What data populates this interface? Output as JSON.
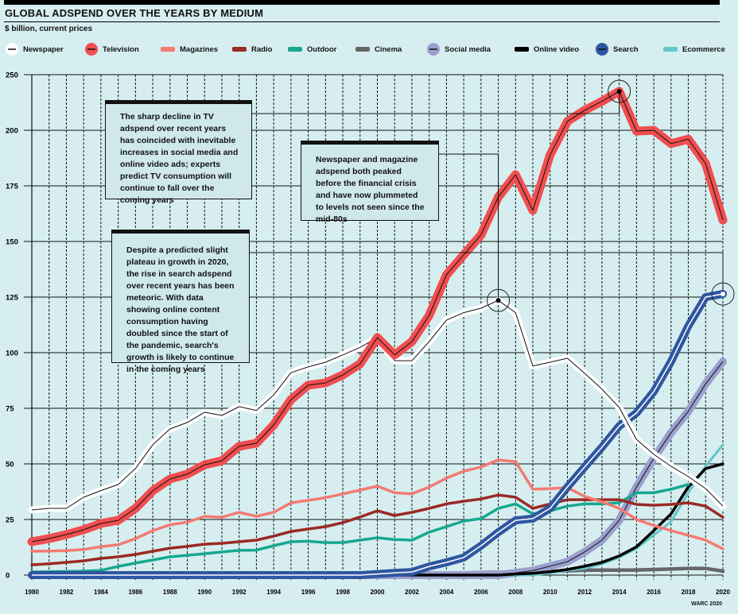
{
  "header": {
    "title": "GLOBAL ADSPEND OVER THE YEARS BY MEDIUM",
    "subtitle": "$ billion, current prices"
  },
  "annotations": [
    {
      "text": "The sharp decline in TV adspend over recent years has coincided with inevitable increases in social media and online video ads; experts predict TV consumption will continue to fall over the coming years",
      "series": "Television",
      "year": 2014
    },
    {
      "text": "Newspaper and magazine adspend both peaked before the financial crisis and have now plummeted to levels not seen since the mid-80s",
      "series": "Newspaper",
      "year": 2007
    },
    {
      "text": "Despite a predicted slight plateau in growth in 2020, the rise in search adspend over recent years has been meteoric. With data showing online content consumption having doubled since the start of the pandemic, search's growth is likely to continue in the coming years",
      "series": "Search",
      "year": 2020
    }
  ],
  "footer": {
    "source": "WARC 2020"
  },
  "chart_data": {
    "type": "line",
    "title": "GLOBAL ADSPEND OVER THE YEARS BY MEDIUM",
    "ylabel": "$ billion, current prices",
    "xlabel": "",
    "xlim": [
      1980,
      2020
    ],
    "ylim": [
      0,
      250
    ],
    "y_tick_labels": [
      "0",
      "25",
      "50",
      "75",
      "100",
      "125",
      "150",
      "175",
      "200",
      "250"
    ],
    "x_tick_labels": [
      "1980",
      "1982",
      "1984",
      "1986",
      "1988",
      "1990",
      "1992",
      "1994",
      "1996",
      "1998",
      "2000",
      "2002",
      "2004",
      "2006",
      "2008",
      "2010",
      "2012",
      "2014",
      "2016",
      "2018",
      "2020"
    ],
    "grid": true,
    "legend_placement": "top",
    "x": [
      1980,
      1981,
      1982,
      1983,
      1984,
      1985,
      1986,
      1987,
      1988,
      1989,
      1990,
      1991,
      1992,
      1993,
      1994,
      1995,
      1996,
      1997,
      1998,
      1999,
      2000,
      2001,
      2002,
      2003,
      2004,
      2005,
      2006,
      2007,
      2008,
      2009,
      2010,
      2011,
      2012,
      2013,
      2014,
      2015,
      2016,
      2017,
      2018,
      2019,
      2020
    ],
    "series": [
      {
        "name": "Newspaper",
        "color": "#ffffff",
        "values": [
          29.3,
          30,
          30,
          35,
          38,
          40.7,
          47.9,
          58.6,
          65.7,
          68.6,
          73.2,
          71.8,
          75.7,
          74,
          81,
          91,
          93.6,
          95.7,
          99,
          102.4,
          106.8,
          96.4,
          96.4,
          105,
          114.6,
          118,
          120,
          123.5,
          118,
          94,
          95.7,
          97.5,
          90.7,
          83.6,
          75.4,
          61,
          54.3,
          48.9,
          44.3,
          38.9,
          31
        ]
      },
      {
        "name": "Television",
        "color": "#f04e50",
        "values": [
          15,
          16.4,
          18.2,
          20.4,
          23.2,
          24.6,
          30,
          37.9,
          43.2,
          45.4,
          49.6,
          51.4,
          57.9,
          59.3,
          67.5,
          78.9,
          85.4,
          86.4,
          90,
          95,
          106.8,
          99,
          105,
          116.8,
          135,
          144,
          153,
          170,
          180,
          164,
          189,
          204,
          209,
          213,
          217.5,
          199.6,
          200,
          194,
          196,
          185,
          159.6
        ]
      },
      {
        "name": "Magazines",
        "color": "#f47a72",
        "values": [
          10.7,
          10.8,
          11,
          11.5,
          12.8,
          13.6,
          16.4,
          20,
          22.6,
          23.8,
          26.4,
          26,
          28.2,
          26.4,
          28.2,
          32.5,
          33.6,
          34.8,
          36.5,
          38.2,
          40,
          37,
          36.5,
          39.6,
          43.6,
          46.7,
          48.6,
          51.8,
          51,
          38.6,
          38.9,
          39.3,
          35.4,
          32.9,
          30,
          25,
          22.3,
          20,
          17.9,
          15.7,
          11.8
        ]
      },
      {
        "name": "Radio",
        "color": "#9a2a25",
        "values": [
          4.6,
          5.1,
          5.7,
          6.4,
          7.5,
          8.2,
          9.3,
          10.7,
          12.1,
          12.9,
          13.9,
          14.3,
          15,
          15.7,
          17.5,
          19.6,
          20.7,
          21.8,
          23.6,
          26.1,
          28.9,
          26.8,
          28.2,
          30,
          32,
          33.2,
          34.2,
          36,
          35,
          30,
          32,
          33.9,
          33.9,
          33.9,
          33.9,
          31.8,
          31.4,
          31.8,
          32.5,
          31,
          26
        ]
      },
      {
        "name": "Outdoor",
        "color": "#17a88f",
        "values": [
          1.4,
          1.5,
          1.6,
          1.8,
          2.1,
          3.9,
          5.4,
          6.8,
          8.2,
          8.9,
          9.6,
          10.4,
          11.1,
          11.2,
          13.2,
          15,
          15.2,
          14.6,
          14.6,
          15.7,
          16.8,
          16,
          15.7,
          19.3,
          21.8,
          24.3,
          25.4,
          30,
          32,
          27.5,
          28.9,
          31,
          32,
          32,
          32.5,
          37,
          37,
          38.6,
          40.7,
          null,
          null
        ]
      },
      {
        "name": "Cinema",
        "color": "#666666",
        "values": [
          0.5,
          0.5,
          0.5,
          0.5,
          0.5,
          0.5,
          0.5,
          0.5,
          0.5,
          0.5,
          0.5,
          0.5,
          0.6,
          0.6,
          0.6,
          0.6,
          0.6,
          0.7,
          0.7,
          0.7,
          0.8,
          0.8,
          0.8,
          0.9,
          1,
          1,
          1.1,
          1.2,
          1.4,
          1.5,
          1.7,
          1.9,
          2.2,
          2.2,
          2.2,
          2.3,
          2.5,
          2.7,
          3,
          3,
          1.8
        ]
      },
      {
        "name": "Social media",
        "color": "#9a9fce",
        "values": [
          0,
          0,
          0,
          0,
          0,
          0,
          0,
          0,
          0,
          0,
          0,
          0,
          0,
          0,
          0,
          0,
          0,
          0,
          0,
          0,
          0,
          0,
          0,
          0,
          0,
          0,
          0,
          0,
          1,
          2,
          4,
          6,
          10.4,
          15.7,
          24.6,
          39.6,
          52.5,
          64,
          73.6,
          86,
          96
        ]
      },
      {
        "name": "Online video",
        "color": "#000000",
        "values": [
          0,
          0,
          0,
          0,
          0,
          0,
          0,
          0,
          0,
          0,
          0,
          0,
          0,
          0,
          0,
          0,
          0,
          0,
          0,
          0,
          0,
          0,
          0,
          0,
          0,
          0,
          0,
          0,
          0.5,
          0.8,
          1.5,
          2.5,
          4,
          5.7,
          8.6,
          12.7,
          20,
          27.5,
          39.6,
          47.9,
          50
        ]
      },
      {
        "name": "Search",
        "color": "#2f56a0",
        "values": [
          0,
          0,
          0,
          0,
          0,
          0,
          0,
          0,
          0,
          0,
          0,
          0,
          0,
          0,
          0,
          0,
          0,
          0,
          0,
          0,
          0.5,
          1,
          1.4,
          3.9,
          5.7,
          7.9,
          13.2,
          19.3,
          24.6,
          25.4,
          30,
          39.6,
          48.6,
          57.5,
          67,
          72.9,
          82.5,
          96,
          112,
          125,
          126.4
        ]
      },
      {
        "name": "Ecommerce",
        "color": "#62c8c8",
        "values": [
          0,
          0,
          0,
          0,
          0,
          0,
          0,
          0,
          0,
          0,
          0,
          0,
          0,
          0,
          0,
          0,
          0,
          0,
          0,
          0,
          0,
          0,
          0,
          0,
          0,
          0,
          0,
          0,
          0,
          0,
          1,
          2,
          3,
          5,
          8,
          12,
          18,
          24,
          37,
          49,
          58.6
        ]
      }
    ]
  }
}
